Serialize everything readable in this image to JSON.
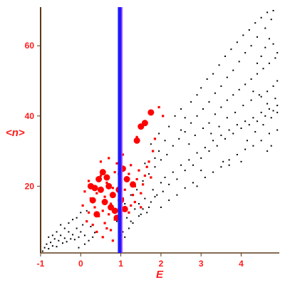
{
  "chart_data": {
    "type": "scatter",
    "xlabel": "E",
    "ylabel": "<n>",
    "xlim": [
      -1,
      4.95
    ],
    "ylim": [
      1,
      71
    ],
    "x_ticks": [
      -1,
      0,
      1,
      2,
      3,
      4
    ],
    "y_ticks": [
      20,
      40,
      60
    ],
    "vertical_marker": {
      "x": 0.97,
      "color": "#1a1aff"
    },
    "series": [
      {
        "marker": "dot",
        "color": "#000000",
        "points": [
          [
            -0.95,
            1.5
          ],
          [
            -0.9,
            2.5
          ],
          [
            -0.85,
            3.5
          ],
          [
            -0.8,
            2.2
          ],
          [
            -0.75,
            4.0
          ],
          [
            -0.7,
            3.0
          ],
          [
            -0.65,
            5.0
          ],
          [
            -0.6,
            2.8
          ],
          [
            -0.55,
            4.5
          ],
          [
            -0.5,
            6.0
          ],
          [
            -0.45,
            3.8
          ],
          [
            -0.4,
            5.2
          ],
          [
            -0.35,
            4.2
          ],
          [
            -0.3,
            7.0
          ],
          [
            -0.25,
            5.0
          ],
          [
            -0.2,
            6.2
          ],
          [
            -0.15,
            4.8
          ],
          [
            -0.1,
            8.0
          ],
          [
            -0.05,
            5.5
          ],
          [
            0.0,
            7.0
          ],
          [
            0.05,
            9.0
          ],
          [
            0.1,
            6.0
          ],
          [
            -0.3,
            9.5
          ],
          [
            -0.2,
            10.5
          ],
          [
            -0.1,
            11.0
          ],
          [
            0.0,
            12.5
          ],
          [
            -0.4,
            8.0
          ],
          [
            -0.6,
            7.0
          ],
          [
            -0.5,
            9.0
          ],
          [
            -0.7,
            6.0
          ],
          [
            -0.8,
            5.5
          ],
          [
            0.15,
            13.0
          ],
          [
            0.2,
            4.5
          ],
          [
            0.3,
            5.5
          ],
          [
            0.1,
            3.5
          ],
          [
            -0.05,
            2.5
          ],
          [
            0.25,
            8.5
          ],
          [
            0.35,
            6.8
          ],
          [
            1.15,
            11.0
          ],
          [
            1.25,
            10.0
          ],
          [
            1.35,
            13.5
          ],
          [
            1.45,
            15.0
          ],
          [
            1.5,
            12.0
          ],
          [
            1.6,
            16.5
          ],
          [
            1.7,
            14.0
          ],
          [
            1.8,
            19.0
          ],
          [
            1.9,
            17.5
          ],
          [
            2.0,
            21.0
          ],
          [
            2.05,
            18.5
          ],
          [
            2.1,
            22.5
          ],
          [
            2.2,
            20.5
          ],
          [
            2.3,
            24.0
          ],
          [
            2.4,
            22.0
          ],
          [
            2.5,
            26.0
          ],
          [
            2.6,
            24.5
          ],
          [
            2.7,
            27.5
          ],
          [
            2.8,
            26.0
          ],
          [
            2.9,
            29.5
          ],
          [
            3.0,
            28.0
          ],
          [
            3.1,
            31.0
          ],
          [
            3.2,
            30.0
          ],
          [
            3.3,
            33.0
          ],
          [
            3.4,
            31.5
          ],
          [
            3.5,
            34.5
          ],
          [
            3.6,
            33.5
          ],
          [
            3.7,
            36.0
          ],
          [
            3.8,
            35.0
          ],
          [
            3.9,
            37.5
          ],
          [
            4.0,
            36.5
          ],
          [
            4.1,
            38.5
          ],
          [
            4.2,
            37.5
          ],
          [
            4.3,
            39.5
          ],
          [
            4.4,
            38.5
          ],
          [
            4.5,
            41.0
          ],
          [
            4.6,
            40.0
          ],
          [
            4.7,
            42.0
          ],
          [
            4.8,
            41.5
          ],
          [
            4.9,
            43.0
          ],
          [
            1.95,
            35.0
          ],
          [
            2.1,
            33.0
          ],
          [
            2.2,
            37.0
          ],
          [
            2.35,
            40.0
          ],
          [
            2.5,
            42.0
          ],
          [
            2.6,
            39.5
          ],
          [
            2.75,
            44.0
          ],
          [
            2.9,
            46.0
          ],
          [
            3.0,
            48.0
          ],
          [
            3.15,
            50.5
          ],
          [
            3.3,
            52.0
          ],
          [
            3.45,
            54.5
          ],
          [
            3.6,
            57.0
          ],
          [
            3.75,
            59.0
          ],
          [
            3.9,
            61.0
          ],
          [
            4.05,
            63.0
          ],
          [
            4.2,
            64.5
          ],
          [
            4.35,
            66.5
          ],
          [
            4.5,
            68.0
          ],
          [
            4.65,
            69.5
          ],
          [
            4.8,
            70.0
          ],
          [
            4.75,
            67.5
          ],
          [
            4.6,
            65.0
          ],
          [
            4.4,
            62.5
          ],
          [
            4.25,
            60.0
          ],
          [
            4.1,
            58.0
          ],
          [
            3.95,
            55.5
          ],
          [
            3.8,
            53.0
          ],
          [
            3.65,
            51.0
          ],
          [
            3.5,
            48.5
          ],
          [
            3.35,
            46.5
          ],
          [
            3.2,
            44.0
          ],
          [
            3.05,
            42.0
          ],
          [
            2.9,
            40.0
          ],
          [
            2.75,
            38.0
          ],
          [
            2.6,
            35.5
          ],
          [
            2.45,
            33.5
          ],
          [
            2.3,
            31.5
          ],
          [
            2.15,
            29.0
          ],
          [
            2.0,
            27.5
          ],
          [
            1.85,
            25.5
          ],
          [
            1.7,
            23.5
          ],
          [
            1.55,
            21.5
          ],
          [
            1.4,
            19.0
          ],
          [
            1.25,
            17.5
          ],
          [
            1.1,
            15.0
          ],
          [
            3.2,
            38.0
          ],
          [
            3.35,
            40.5
          ],
          [
            3.5,
            42.5
          ],
          [
            3.65,
            44.5
          ],
          [
            3.8,
            46.0
          ],
          [
            3.95,
            47.5
          ],
          [
            4.1,
            49.0
          ],
          [
            4.25,
            50.5
          ],
          [
            4.4,
            52.0
          ],
          [
            4.55,
            53.5
          ],
          [
            4.7,
            55.0
          ],
          [
            4.85,
            56.5
          ],
          [
            4.9,
            58.0
          ],
          [
            4.8,
            60.5
          ],
          [
            4.7,
            62.0
          ],
          [
            4.6,
            59.5
          ],
          [
            4.5,
            57.0
          ],
          [
            4.4,
            55.0
          ],
          [
            4.3,
            47.0
          ],
          [
            4.5,
            45.5
          ],
          [
            4.65,
            47.0
          ],
          [
            4.8,
            48.5
          ],
          [
            4.9,
            50.0
          ],
          [
            2.9,
            20.0
          ],
          [
            3.1,
            22.5
          ],
          [
            3.3,
            24.0
          ],
          [
            3.5,
            25.5
          ],
          [
            3.7,
            27.5
          ],
          [
            3.9,
            29.0
          ],
          [
            4.1,
            30.5
          ],
          [
            4.3,
            31.5
          ],
          [
            4.5,
            33.0
          ],
          [
            4.7,
            35.0
          ],
          [
            4.9,
            36.0
          ],
          [
            2.0,
            14.0
          ],
          [
            2.2,
            16.0
          ],
          [
            2.4,
            17.5
          ],
          [
            2.6,
            19.5
          ],
          [
            2.8,
            21.0
          ],
          [
            3.0,
            24.5
          ],
          [
            1.95,
            30.0
          ],
          [
            1.85,
            28.0
          ],
          [
            1.75,
            32.0
          ],
          [
            1.6,
            26.5
          ],
          [
            2.5,
            36.0
          ],
          [
            2.7,
            32.0
          ],
          [
            2.85,
            34.5
          ],
          [
            3.05,
            36.5
          ],
          [
            3.25,
            35.0
          ],
          [
            3.45,
            37.0
          ],
          [
            3.65,
            39.5
          ],
          [
            3.85,
            41.0
          ],
          [
            4.05,
            43.0
          ],
          [
            4.25,
            44.5
          ],
          [
            4.45,
            46.0
          ],
          [
            4.65,
            43.5
          ],
          [
            4.85,
            45.0
          ],
          [
            3.7,
            26.0
          ],
          [
            4.0,
            27.0
          ],
          [
            4.15,
            33.0
          ],
          [
            4.35,
            35.5
          ],
          [
            4.55,
            37.5
          ],
          [
            4.75,
            39.5
          ],
          [
            4.9,
            41.0
          ],
          [
            3.55,
            27.0
          ],
          [
            4.65,
            30.0
          ],
          [
            4.75,
            31.5
          ],
          [
            1.2,
            8.0
          ],
          [
            1.3,
            9.5
          ],
          [
            1.45,
            11.5
          ],
          [
            1.55,
            13.5
          ],
          [
            1.65,
            12.5
          ],
          [
            1.75,
            15.5
          ],
          [
            1.85,
            17.0
          ],
          [
            1.05,
            7.0
          ],
          [
            1.1,
            5.5
          ],
          [
            1.0,
            6.0
          ],
          [
            0.95,
            8.5
          ],
          [
            0.9,
            10.0
          ]
        ]
      },
      {
        "marker": "square",
        "color": "#ff0000",
        "points": [
          [
            0.4,
            18.0
          ],
          [
            0.5,
            23.0
          ],
          [
            0.6,
            17.0
          ],
          [
            0.65,
            21.0
          ],
          [
            0.75,
            15.0
          ],
          [
            0.8,
            19.5
          ],
          [
            0.85,
            24.0
          ],
          [
            0.9,
            26.5
          ],
          [
            0.55,
            13.0
          ],
          [
            0.45,
            11.5
          ],
          [
            0.35,
            14.0
          ],
          [
            0.25,
            16.5
          ],
          [
            0.2,
            12.5
          ],
          [
            0.15,
            10.0
          ],
          [
            0.3,
            9.0
          ],
          [
            0.1,
            18.5
          ],
          [
            0.6,
            9.5
          ],
          [
            0.7,
            12.0
          ],
          [
            0.75,
            7.5
          ],
          [
            0.85,
            10.5
          ],
          [
            0.95,
            13.5
          ],
          [
            1.05,
            16.5
          ],
          [
            1.1,
            19.0
          ],
          [
            1.15,
            21.5
          ],
          [
            1.2,
            23.5
          ],
          [
            1.25,
            14.5
          ],
          [
            1.3,
            17.5
          ],
          [
            1.35,
            20.0
          ],
          [
            1.4,
            22.0
          ],
          [
            1.45,
            24.5
          ],
          [
            1.5,
            18.0
          ],
          [
            1.55,
            20.5
          ],
          [
            1.6,
            23.0
          ],
          [
            1.65,
            25.5
          ],
          [
            1.7,
            27.0
          ],
          [
            1.75,
            22.5
          ],
          [
            1.8,
            30.0
          ],
          [
            1.85,
            33.5
          ],
          [
            1.95,
            42.5
          ],
          [
            2.05,
            40.0
          ],
          [
            1.4,
            34.0
          ],
          [
            1.25,
            26.0
          ],
          [
            1.05,
            29.0
          ],
          [
            0.95,
            23.5
          ],
          [
            0.7,
            28.0
          ],
          [
            0.5,
            27.0
          ],
          [
            0.2,
            21.5
          ],
          [
            0.05,
            14.5
          ],
          [
            0.4,
            7.0
          ],
          [
            0.55,
            5.5
          ],
          [
            0.65,
            8.0
          ],
          [
            0.8,
            4.5
          ],
          [
            1.0,
            11.5
          ],
          [
            1.2,
            12.5
          ],
          [
            1.35,
            15.5
          ],
          [
            1.5,
            14.0
          ]
        ]
      },
      {
        "marker": "circle",
        "color": "#ff0000",
        "points": [
          [
            0.55,
            24.0
          ],
          [
            0.45,
            22.0
          ],
          [
            0.35,
            19.5
          ],
          [
            0.5,
            19.0
          ],
          [
            0.7,
            20.0
          ],
          [
            0.8,
            17.5
          ],
          [
            0.6,
            15.5
          ],
          [
            0.3,
            16.0
          ],
          [
            0.85,
            13.0
          ],
          [
            0.4,
            12.0
          ],
          [
            0.95,
            19.0
          ],
          [
            1.0,
            16.0
          ],
          [
            1.05,
            25.0
          ],
          [
            1.15,
            22.0
          ],
          [
            1.3,
            20.5
          ],
          [
            1.4,
            33.0
          ],
          [
            1.5,
            37.0
          ],
          [
            1.6,
            38.0
          ],
          [
            1.75,
            41.0
          ],
          [
            0.75,
            14.0
          ],
          [
            0.9,
            11.0
          ],
          [
            1.1,
            13.5
          ],
          [
            0.65,
            22.5
          ],
          [
            0.25,
            20.0
          ]
        ]
      }
    ]
  }
}
